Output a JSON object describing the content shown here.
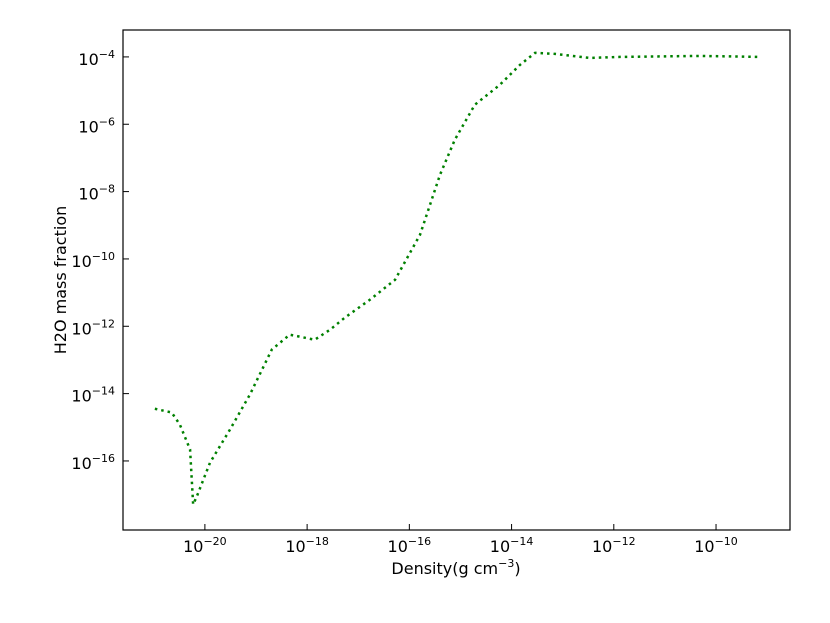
{
  "chart_data": {
    "type": "line",
    "xlabel": "Density(g cm−3)",
    "ylabel": "H2O mass fraction",
    "xscale": "log",
    "yscale": "log",
    "xlim": [
      2.5e-22,
      2.8e-09
    ],
    "ylim": [
      8.9e-19,
      0.00063
    ],
    "xticks": [
      {
        "value": 1e-20,
        "label": "10−20"
      },
      {
        "value": 1e-18,
        "label": "10−18"
      },
      {
        "value": 1e-16,
        "label": "10−16"
      },
      {
        "value": 1e-14,
        "label": "10−14"
      },
      {
        "value": 1e-12,
        "label": "10−12"
      },
      {
        "value": 1e-10,
        "label": "10−10"
      }
    ],
    "yticks": [
      {
        "value": 1e-16,
        "label": "10−16"
      },
      {
        "value": 1e-14,
        "label": "10−14"
      },
      {
        "value": 1e-12,
        "label": "10−12"
      },
      {
        "value": 1e-10,
        "label": "10−10"
      },
      {
        "value": 1e-08,
        "label": "10−8"
      },
      {
        "value": 1e-06,
        "label": "10−6"
      },
      {
        "value": 0.0001,
        "label": "10−4"
      }
    ],
    "x": [
      1.05e-21,
      2.24e-21,
      3.24e-21,
      5.13e-21,
      5.89e-21,
      6.92e-21,
      1.26e-20,
      3.09e-20,
      7.59e-20,
      2.04e-19,
      4.57e-19,
      7.24e-19,
      1.41e-18,
      2.82e-18,
      5.5e-18,
      1.7e-17,
      5.25e-17,
      1.62e-16,
      3.98e-16,
      7.76e-16,
      1.91e-15,
      5.89e-15,
      1.45e-14,
      2.88e-14,
      7.08e-14,
      3.39e-13,
      1.32e-12,
      4.9e-11,
      7.24e-10
    ],
    "series": [
      {
        "color": "#008000",
        "linestyle": "dotted",
        "values": [
          3.55e-15,
          2.75e-15,
          1.2e-15,
          2.19e-16,
          5.13e-18,
          8.71e-18,
          8.91e-17,
          8.51e-16,
          9.33e-15,
          2.04e-13,
          5.62e-13,
          4.9e-13,
          3.98e-13,
          7.94e-13,
          1.82e-12,
          6.17e-12,
          2.4e-11,
          5.25e-10,
          3.16e-08,
          3.47e-07,
          3.8e-06,
          1.48e-05,
          5.75e-05,
          0.000132,
          0.000123,
          9.33e-05,
          0.0001,
          0.000107,
          0.0001
        ]
      }
    ]
  }
}
